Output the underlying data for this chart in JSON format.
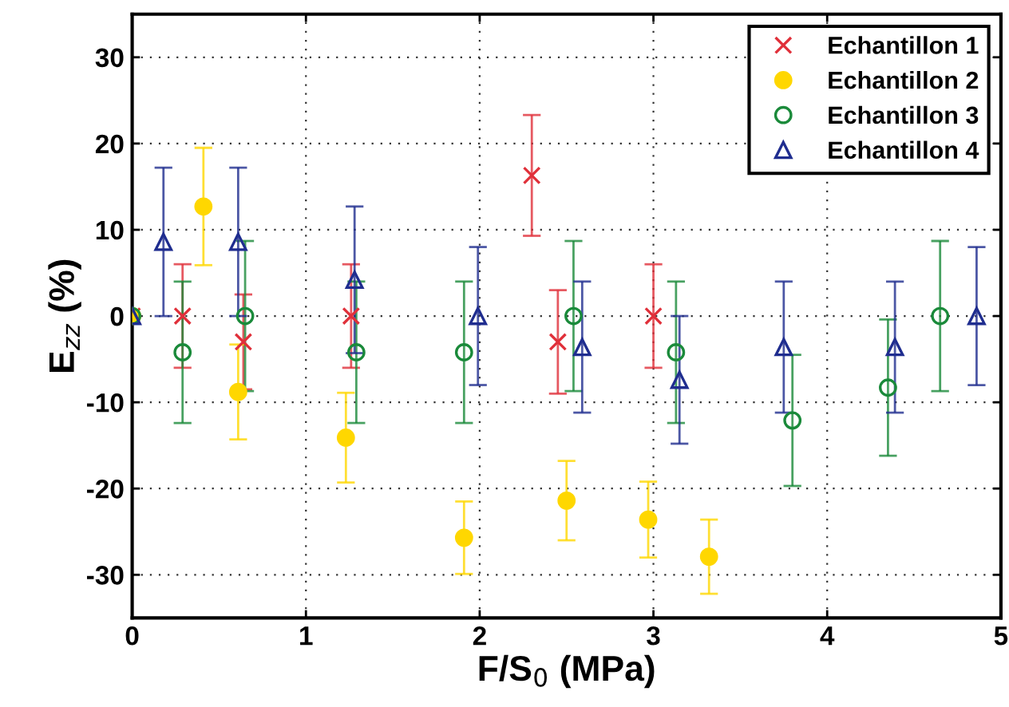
{
  "chart_data": {
    "type": "scatter",
    "xlabel": "F/S$_{0}$ (MPa)",
    "ylabel": "E$_{zz}$ (%)",
    "xlim": [
      0,
      5
    ],
    "ylim": [
      -35,
      35
    ],
    "xticks": [
      0,
      1,
      2,
      3,
      4,
      5
    ],
    "yticks": [
      -30,
      -20,
      -10,
      0,
      10,
      20,
      30
    ],
    "grid": true,
    "legend": "top right",
    "series": [
      {
        "name": "Echantillon 1",
        "color": "#e0303a",
        "marker": "cross",
        "x": [
          0,
          0.29,
          0.64,
          1.26,
          2.3,
          2.45,
          3.0
        ],
        "values": [
          0,
          0,
          -3,
          0,
          16.3,
          -3,
          0
        ],
        "errors": [
          null,
          6,
          5.5,
          6,
          7,
          6,
          6
        ]
      },
      {
        "name": "Echantillon 2",
        "color": "#ffd700",
        "marker": "circle",
        "x": [
          0,
          0.41,
          0.61,
          1.23,
          1.91,
          2.5,
          2.97,
          3.32
        ],
        "values": [
          0,
          12.7,
          -8.8,
          -14.1,
          -25.7,
          -21.4,
          -23.6,
          -27.9
        ],
        "errors": [
          null,
          6.8,
          5.5,
          5.2,
          4.2,
          4.6,
          4.4,
          4.3
        ]
      },
      {
        "name": "Echantillon 3",
        "color": "#1a8a3a",
        "marker": "circle",
        "x": [
          0,
          0.29,
          0.65,
          1.29,
          1.91,
          2.54,
          3.13,
          3.8,
          4.35,
          4.65
        ],
        "values": [
          0,
          -4.2,
          0,
          -4.2,
          -4.2,
          0,
          -4.2,
          -12.1,
          -8.3,
          0
        ],
        "errors": [
          null,
          8.2,
          8.7,
          8.2,
          8.2,
          8.7,
          8.2,
          7.6,
          7.9,
          8.7
        ]
      },
      {
        "name": "Echantillon 4",
        "color": "#1f2d8f",
        "marker": "triangle",
        "x": [
          0,
          0.18,
          0.61,
          1.28,
          1.99,
          2.59,
          3.15,
          3.75,
          4.39,
          4.86
        ],
        "values": [
          0,
          8.6,
          8.6,
          4.2,
          0,
          -3.6,
          -7.4,
          -3.6,
          -3.6,
          0
        ],
        "errors": [
          null,
          8.6,
          8.6,
          8.5,
          8,
          7.6,
          7.4,
          7.6,
          7.6,
          8
        ]
      }
    ]
  }
}
